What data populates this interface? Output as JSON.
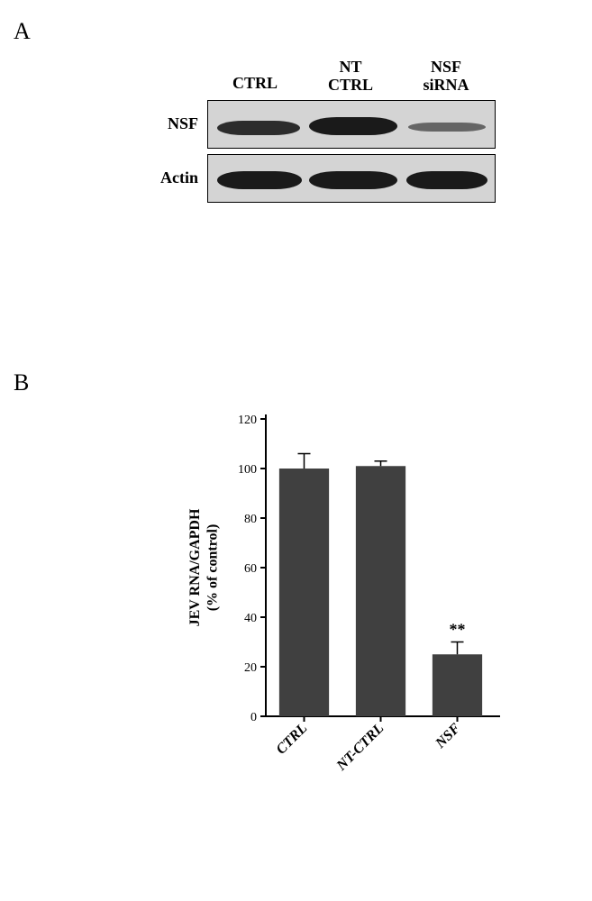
{
  "panels": {
    "a_label": "A",
    "b_label": "B"
  },
  "blot": {
    "columns": [
      {
        "line1": "",
        "line2": "CTRL"
      },
      {
        "line1": "NT",
        "line2": "CTRL"
      },
      {
        "line1": "NSF",
        "line2": "siRNA"
      }
    ],
    "rows": [
      {
        "label": "NSF",
        "bands": [
          {
            "x": 10,
            "y": 22,
            "w": 92,
            "h": 16,
            "intensity": 0.9
          },
          {
            "x": 112,
            "y": 18,
            "w": 98,
            "h": 20,
            "intensity": 1.0
          },
          {
            "x": 222,
            "y": 24,
            "w": 86,
            "h": 10,
            "intensity": 0.6
          }
        ]
      },
      {
        "label": "Actin",
        "bands": [
          {
            "x": 10,
            "y": 18,
            "w": 94,
            "h": 20,
            "intensity": 1.0
          },
          {
            "x": 112,
            "y": 18,
            "w": 98,
            "h": 20,
            "intensity": 1.0
          },
          {
            "x": 220,
            "y": 18,
            "w": 90,
            "h": 20,
            "intensity": 1.0
          }
        ]
      }
    ],
    "box_bg": "#d4d4d4",
    "band_color": "#1a1a1a"
  },
  "chart": {
    "type": "bar",
    "ylabel_line1": "JEV RNA/GAPDH",
    "ylabel_line2": "(% of control)",
    "categories": [
      "CTRL",
      "NT-CTRL",
      "NSF"
    ],
    "values": [
      100,
      101,
      25
    ],
    "errors": [
      6,
      2,
      5
    ],
    "significance": [
      "",
      "",
      "**"
    ],
    "ylim": [
      0,
      120
    ],
    "ytick_step": 20,
    "bar_color": "#404040",
    "bar_width": 0.65,
    "axis_color": "#000000",
    "background_color": "#ffffff",
    "label_fontsize": 16,
    "tick_fontsize": 14,
    "label_font": "Times New Roman",
    "tick_font": "Times New Roman"
  },
  "colors": {
    "text": "#000000",
    "background": "#ffffff"
  }
}
